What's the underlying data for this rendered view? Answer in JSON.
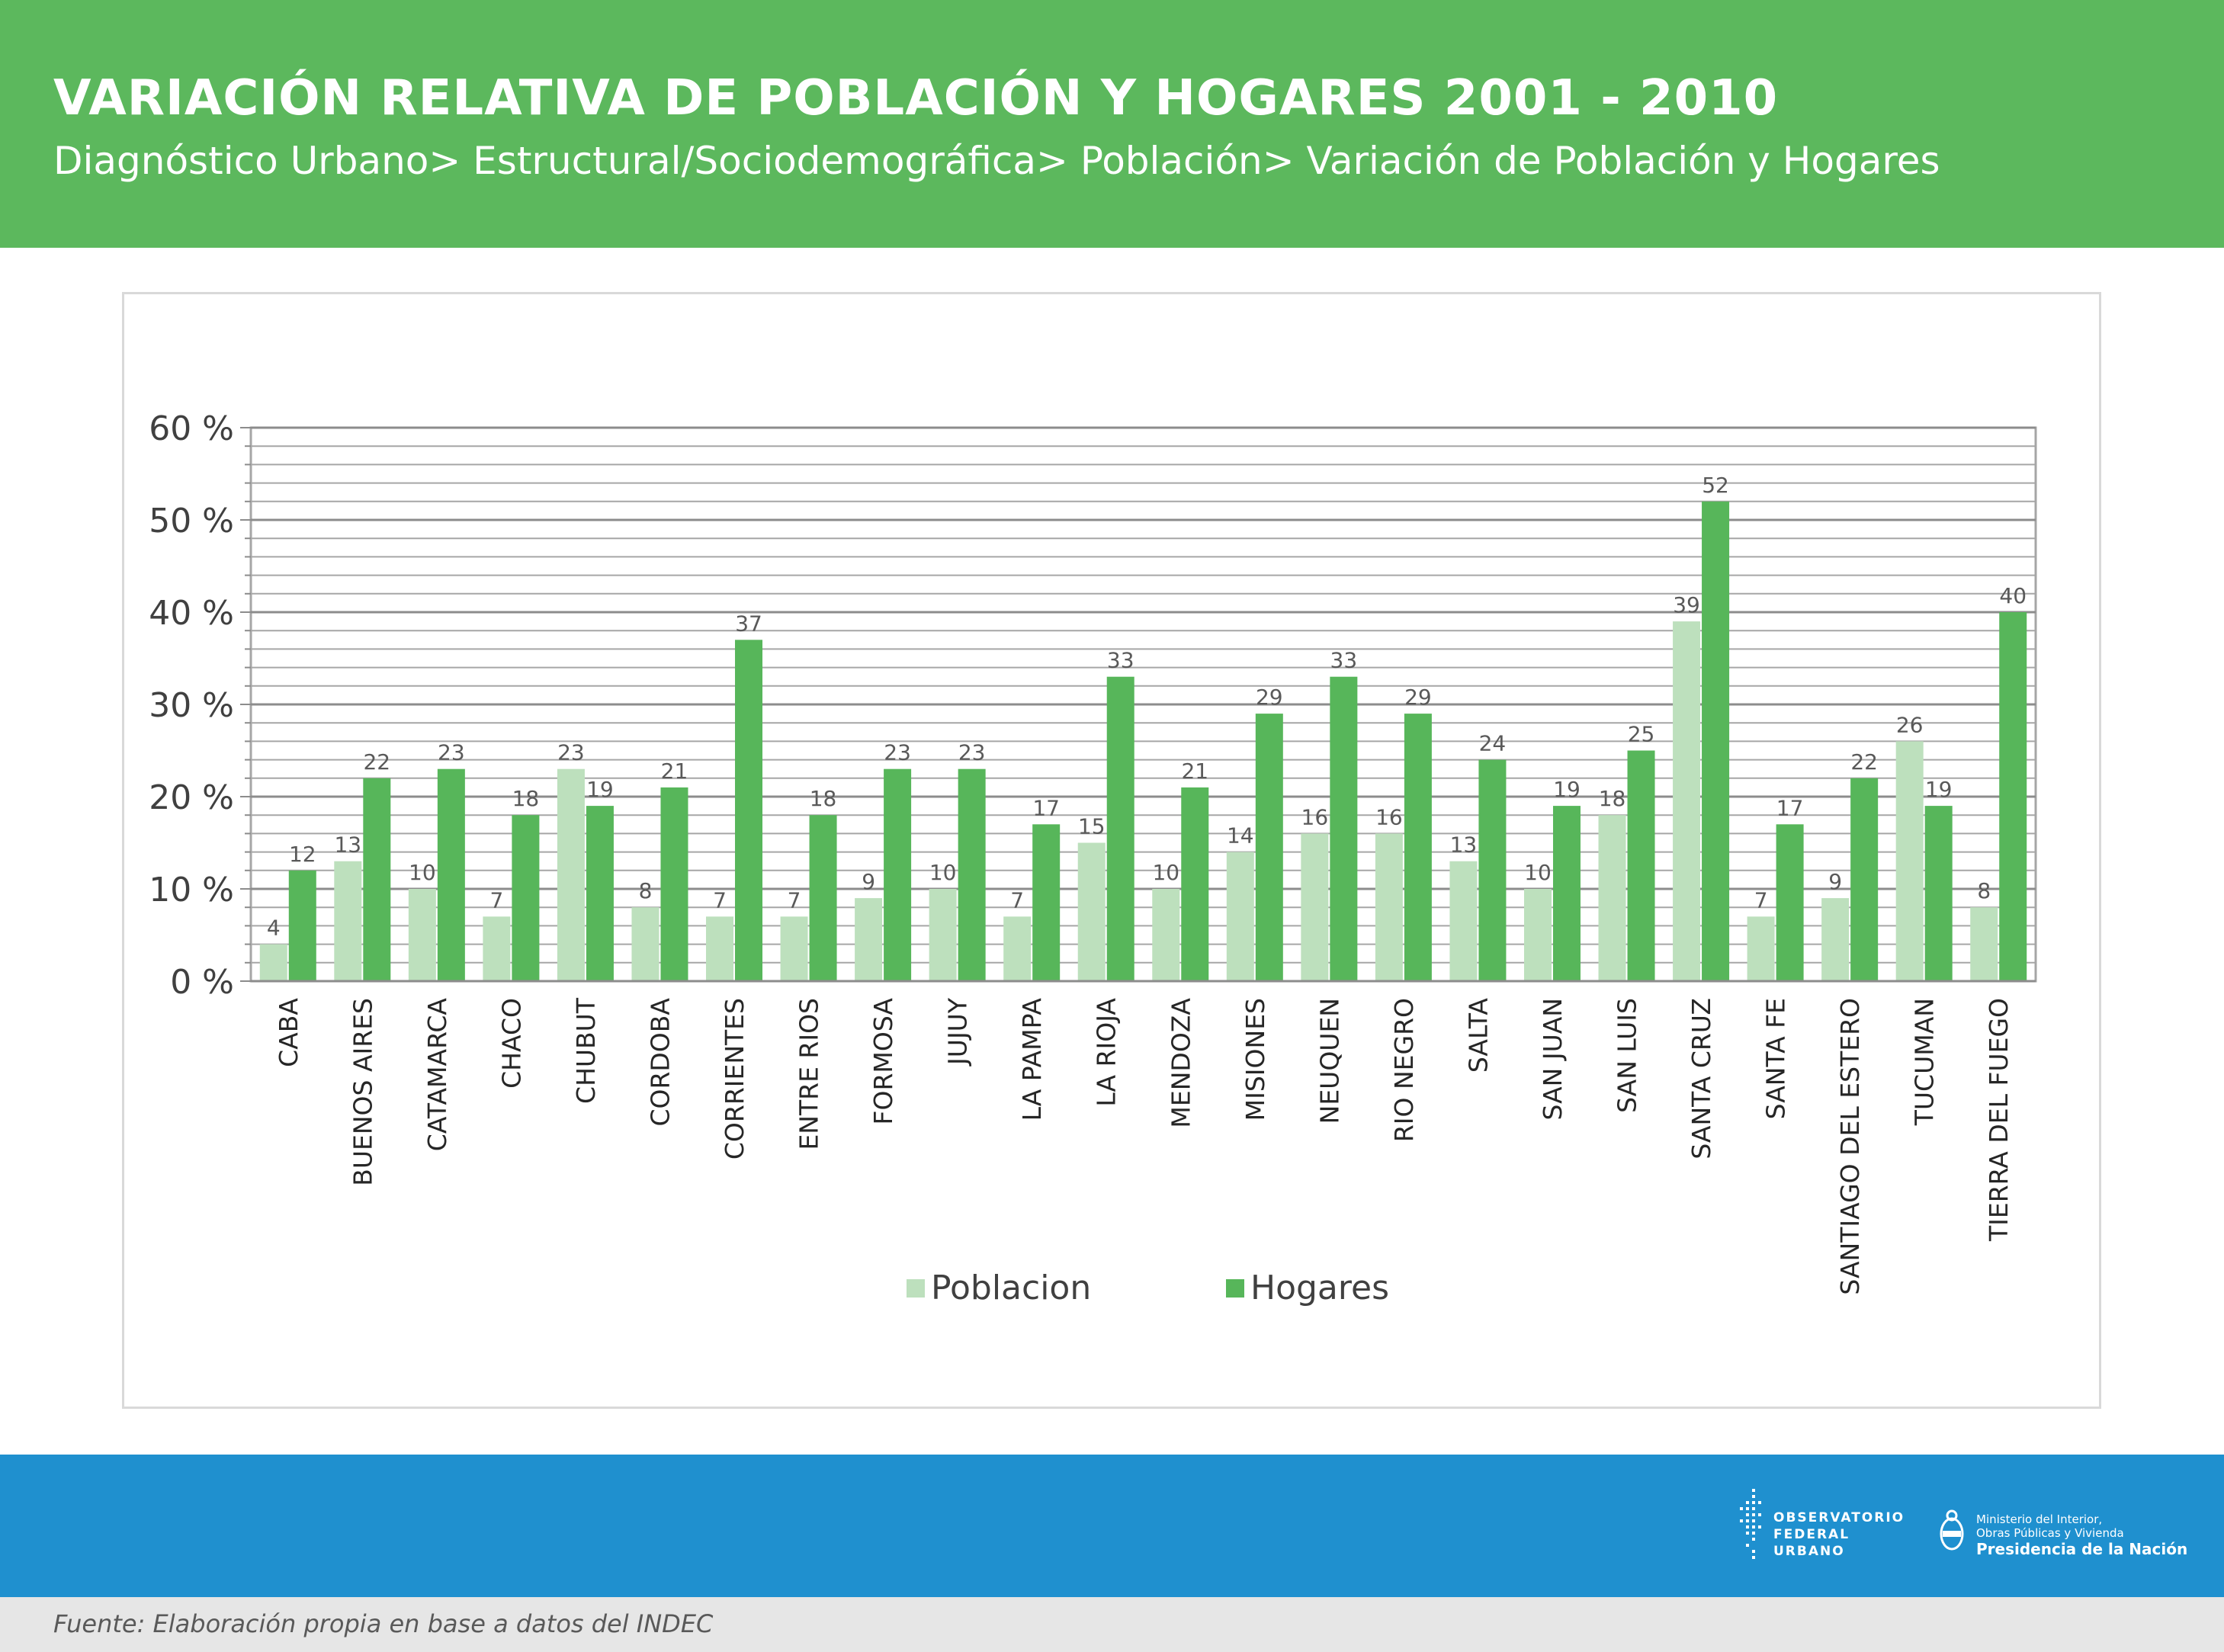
{
  "header": {
    "title": "VARIACIÓN RELATIVA DE POBLACIÓN Y HOGARES 2001 - 2010",
    "subtitle": "Diagnóstico Urbano> Estructural/Sociodemográfica> Población> Variación de Población y Hogares"
  },
  "colors": {
    "header_bg": "#5cb85d",
    "footer_bg": "#1f90cf",
    "source_bg": "#e6e6e6",
    "poblacion": "#bde0bd",
    "hogares": "#57b65a"
  },
  "chart_data": {
    "type": "bar",
    "categories": [
      "CABA",
      "BUENOS AIRES",
      "CATAMARCA",
      "CHACO",
      "CHUBUT",
      "CORDOBA",
      "CORRIENTES",
      "ENTRE RIOS",
      "FORMOSA",
      "JUJUY",
      "LA PAMPA",
      "LA RIOJA",
      "MENDOZA",
      "MISIONES",
      "NEUQUEN",
      "RIO NEGRO",
      "SALTA",
      "SAN JUAN",
      "SAN LUIS",
      "SANTA CRUZ",
      "SANTA FE",
      "SANTIAGO DEL ESTERO",
      "TUCUMAN",
      "TIERRA DEL FUEGO"
    ],
    "series": [
      {
        "name": "Poblacion",
        "color": "#bde0bd",
        "values": [
          4,
          13,
          10,
          7,
          23,
          8,
          7,
          7,
          9,
          10,
          7,
          15,
          10,
          14,
          16,
          16,
          13,
          10,
          18,
          39,
          7,
          9,
          26,
          8
        ]
      },
      {
        "name": "Hogares",
        "color": "#57b65a",
        "values": [
          12,
          22,
          23,
          18,
          19,
          21,
          37,
          18,
          23,
          23,
          17,
          33,
          21,
          29,
          33,
          29,
          24,
          19,
          25,
          52,
          17,
          22,
          19,
          40
        ]
      }
    ],
    "ylim": [
      0,
      60
    ],
    "yticks": [
      "0 %",
      "10 %",
      "20 %",
      "30 %",
      "40 %",
      "50 %",
      "60 %"
    ],
    "ytick_values": [
      0,
      10,
      20,
      30,
      40,
      50,
      60
    ],
    "minor_step": 2,
    "grid": true,
    "legend": "bottom",
    "xlabel": "",
    "ylabel": ""
  },
  "footer": {
    "logo1_lines": [
      "OBSERVATORIO",
      "FEDERAL",
      "URBANO"
    ],
    "logo2_lines": [
      "Ministerio del Interior,",
      "Obras Públicas y Vivienda",
      "Presidencia de la Nación"
    ]
  },
  "source": "Fuente: Elaboración propia en base a datos del INDEC"
}
